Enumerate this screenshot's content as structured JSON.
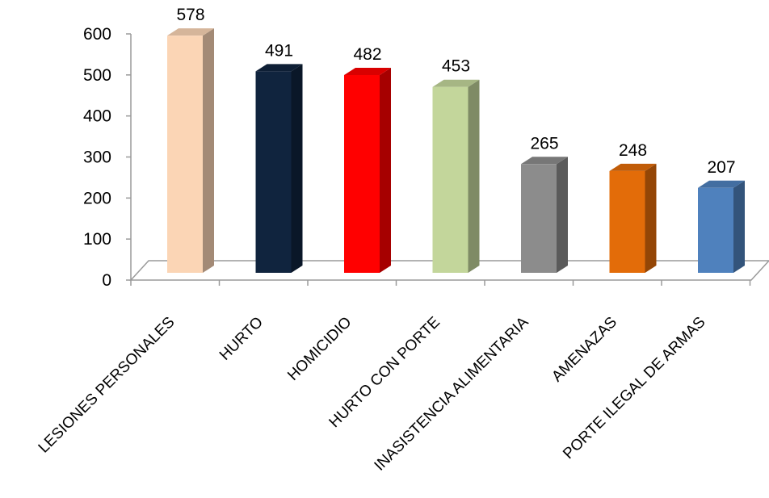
{
  "chart_data": {
    "type": "bar",
    "title": "",
    "xlabel": "",
    "ylabel": "",
    "ylim": [
      0,
      600
    ],
    "yticks": [
      0,
      100,
      200,
      300,
      400,
      500,
      600
    ],
    "grid": false,
    "legend": "none",
    "three_d": true,
    "categories": [
      "LESIONES PERSONALES",
      "HURTO",
      "HOMICIDIO",
      "HURTO CON PORTE",
      "INASISTENCIA  ALIMENTARIA",
      "AMENAZAS",
      "PORTE ILEGAL DE ARMAS"
    ],
    "values": [
      578,
      491,
      482,
      453,
      265,
      248,
      207
    ],
    "colors": [
      "#FBD5B5",
      "#10243E",
      "#FF0000",
      "#C3D69B",
      "#8C8C8C",
      "#E36C09",
      "#4F81BD"
    ]
  }
}
